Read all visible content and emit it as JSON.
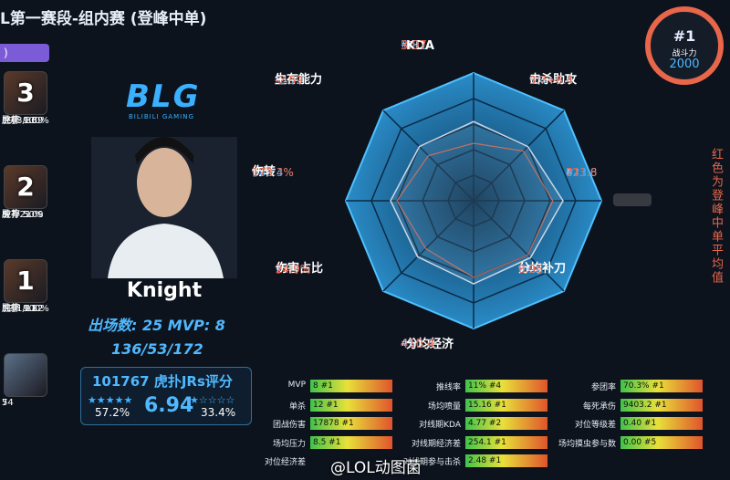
{
  "header": {
    "title": "L第一赛段-组内赛 (登峰中单)",
    "tab": ")"
  },
  "recent_games": [
    {
      "rank": "3",
      "kda": "19/3/30",
      "win_rate": "胜率 100%",
      "hupu": "虎扑 9.59"
    },
    {
      "rank": "2",
      "kda": "8/7/21",
      "win_rate": "胜率 50%",
      "hupu": "虎扑 5.09"
    },
    {
      "rank": "1",
      "kda": "12/1/11",
      "win_rate": "胜率 100%",
      "hupu": "虎扑 9.82"
    },
    {
      "kda": "7",
      "hupu": "54"
    }
  ],
  "player": {
    "team_logo": "BLG",
    "team_name": "BILIBILI GAMING",
    "name": "Knight",
    "games": "出场数: 25  MVP: 8",
    "kda": "136/53/172",
    "votes": "101767 虎扑JRs评分",
    "left_pct": "57.2%",
    "score": "6.94",
    "right_pct": "33.4%"
  },
  "power": {
    "rank": "#1",
    "label": "战斗力",
    "value": "2000"
  },
  "note": "红色为登峰中单平均值",
  "radar": [
    {
      "rank": "#1",
      "player": "5.81",
      "label": "KDA",
      "average": "3.97"
    },
    {
      "rank": "#1",
      "player": "5.4+6.9",
      "label": "击杀助攻",
      "average": "3.7+6.4"
    },
    {
      "rank": "#1",
      "player": "823.8",
      "average": "711.6"
    },
    {
      "rank": "#1",
      "player": "9.24",
      "label": "分均补刀",
      "average": "8.96"
    },
    {
      "rank": "#1",
      "player": "451.6",
      "label": "分均经济",
      "average": "410.4"
    },
    {
      "rank": "#1",
      "player": "27.9%",
      "label": "伤害占比",
      "average": "24.9%"
    },
    {
      "rank": "#1",
      "player": "182.4%",
      "label": "伤转",
      "average": "173.3%"
    },
    {
      "rank": "#1",
      "player": "-2.12",
      "label": "生存能力",
      "average": "-2.59"
    }
  ],
  "stats": [
    [
      {
        "label": "MVP",
        "value": "8 #1"
      },
      {
        "label": "单杀",
        "value": "12 #1"
      },
      {
        "label": "团战伤害",
        "value": "17878 #1"
      },
      {
        "label": "场均压力",
        "value": "8.5 #1"
      },
      {
        "label": "对位经济差"
      }
    ],
    [
      {
        "label": "推线率",
        "value": "11% #4"
      },
      {
        "label": "场均喷量",
        "value": "15.16 #1"
      },
      {
        "label": "对线期KDA",
        "value": "4.77 #2"
      },
      {
        "label": "对线期经济差",
        "value": "254.1 #1"
      },
      {
        "label": "对线期参与击杀",
        "value": "2.48 #1"
      }
    ],
    [
      {
        "label": "参团率",
        "value": "70.3% #1"
      },
      {
        "label": "每死承伤",
        "value": "9403.2 #1"
      },
      {
        "label": "对位等级差",
        "value": "0.40 #1"
      },
      {
        "label": "场均摸虫参与数",
        "value": "0.00 #5"
      }
    ]
  ],
  "watermark": "@LOL动图菌"
}
